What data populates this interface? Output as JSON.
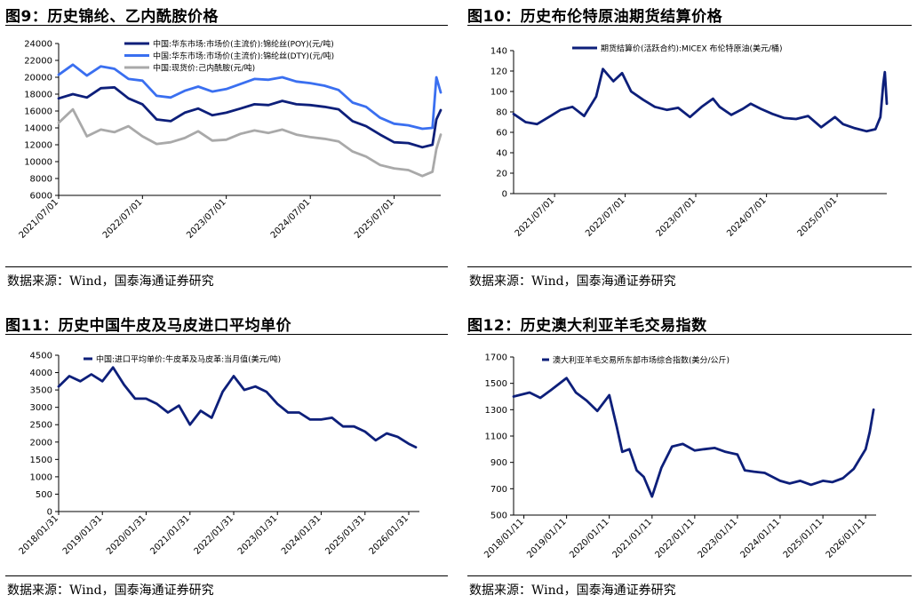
{
  "source_label": "数据来源：Wind，国泰海通证券研究",
  "panels": [
    {
      "title": "图9：历史锦纶、乙内酰胺价格"
    },
    {
      "title": "图10：历史布伦特原油期货结算价格"
    },
    {
      "title": "图11：历史中国牛皮及马皮进口平均单价"
    },
    {
      "title": "图12：历史澳大利亚羊毛交易指数"
    }
  ],
  "chart_data": [
    {
      "type": "line",
      "title": "历史锦纶、乙内酰胺价格",
      "x_ticks": [
        "2021/07/01",
        "2022/07/01",
        "2023/07/01",
        "2024/07/01",
        "2025/07/01"
      ],
      "y_ticks": [
        6000,
        8000,
        10000,
        12000,
        14000,
        16000,
        18000,
        20000,
        22000,
        24000
      ],
      "ylim": [
        6000,
        24000
      ],
      "grid": false,
      "legend_position": "top",
      "x_range": [
        "2021/07/01",
        "2026/01/20"
      ],
      "series": [
        {
          "name": "中国:华东市场:市场价(主流价):锦纶丝(POY)(元/吨)",
          "color": "#0d1f7a",
          "x": [
            "2021/07/01",
            "2021/09/01",
            "2021/11/01",
            "2022/01/01",
            "2022/03/01",
            "2022/05/01",
            "2022/07/01",
            "2022/09/01",
            "2022/11/01",
            "2023/01/01",
            "2023/03/01",
            "2023/05/01",
            "2023/07/01",
            "2023/09/01",
            "2023/11/01",
            "2024/01/01",
            "2024/03/01",
            "2024/05/01",
            "2024/07/01",
            "2024/09/01",
            "2024/11/01",
            "2025/01/01",
            "2025/03/01",
            "2025/05/01",
            "2025/07/01",
            "2025/09/01",
            "2025/11/01",
            "2025/12/15",
            "2026/01/01",
            "2026/01/20"
          ],
          "values": [
            17500,
            18000,
            17600,
            18700,
            18800,
            17500,
            16800,
            15000,
            14800,
            15800,
            16300,
            15500,
            15800,
            16300,
            16800,
            16700,
            17200,
            16800,
            16700,
            16500,
            16200,
            14800,
            14200,
            13200,
            12300,
            12200,
            11700,
            12000,
            15000,
            16100
          ]
        },
        {
          "name": "中国:华东市场:市场价(主流价):锦纶丝(DTY)(元/吨)",
          "color": "#3a6ff0",
          "x": [
            "2021/07/01",
            "2021/09/01",
            "2021/11/01",
            "2022/01/01",
            "2022/03/01",
            "2022/05/01",
            "2022/07/01",
            "2022/09/01",
            "2022/11/01",
            "2023/01/01",
            "2023/03/01",
            "2023/05/01",
            "2023/07/01",
            "2023/09/01",
            "2023/11/01",
            "2024/01/01",
            "2024/03/01",
            "2024/05/01",
            "2024/07/01",
            "2024/09/01",
            "2024/11/01",
            "2025/01/01",
            "2025/03/01",
            "2025/05/01",
            "2025/07/01",
            "2025/09/01",
            "2025/11/01",
            "2025/12/15",
            "2026/01/01",
            "2026/01/20"
          ],
          "values": [
            20300,
            21500,
            20200,
            21300,
            21000,
            19800,
            19600,
            17800,
            17600,
            18400,
            18900,
            18300,
            18600,
            19200,
            19800,
            19700,
            20000,
            19500,
            19300,
            19000,
            18500,
            17000,
            16500,
            15200,
            14500,
            14300,
            13900,
            14000,
            20000,
            18200
          ]
        },
        {
          "name": "中国:现货价:己内酰胺(元/吨)",
          "color": "#a9a9a9",
          "x": [
            "2021/07/01",
            "2021/09/01",
            "2021/11/01",
            "2022/01/01",
            "2022/03/01",
            "2022/05/01",
            "2022/07/01",
            "2022/09/01",
            "2022/11/01",
            "2023/01/01",
            "2023/03/01",
            "2023/05/01",
            "2023/07/01",
            "2023/09/01",
            "2023/11/01",
            "2024/01/01",
            "2024/03/01",
            "2024/05/01",
            "2024/07/01",
            "2024/09/01",
            "2024/11/01",
            "2025/01/01",
            "2025/03/01",
            "2025/05/01",
            "2025/07/01",
            "2025/09/01",
            "2025/11/01",
            "2025/12/15",
            "2026/01/01",
            "2026/01/20"
          ],
          "values": [
            14600,
            16200,
            13000,
            13800,
            13500,
            14200,
            13000,
            12100,
            12300,
            12800,
            13600,
            12500,
            12600,
            13300,
            13700,
            13400,
            13800,
            13200,
            12900,
            12700,
            12400,
            11200,
            10600,
            9600,
            9200,
            9000,
            8300,
            8800,
            11500,
            13200
          ]
        }
      ]
    },
    {
      "type": "line",
      "title": "历史布伦特原油期货结算价格",
      "x_ticks": [
        "2021/07/01",
        "2022/07/01",
        "2023/07/01",
        "2024/07/01",
        "2025/07/01"
      ],
      "y_ticks": [
        0,
        20,
        40,
        60,
        80,
        100,
        120,
        140
      ],
      "ylim": [
        0,
        140
      ],
      "grid": false,
      "legend_position": "top",
      "x_range": [
        "2020/12/01",
        "2026/03/15"
      ],
      "series": [
        {
          "name": "期货结算价(活跃合约):MICEX 布伦特原油(美元/桶)",
          "color": "#0d1f7a",
          "x": [
            "2020/12/01",
            "2021/02/01",
            "2021/04/01",
            "2021/06/01",
            "2021/08/01",
            "2021/10/01",
            "2021/12/01",
            "2022/02/01",
            "2022/03/08",
            "2022/05/01",
            "2022/06/15",
            "2022/08/01",
            "2022/10/01",
            "2022/12/01",
            "2023/02/01",
            "2023/04/01",
            "2023/06/01",
            "2023/08/01",
            "2023/09/28",
            "2023/11/01",
            "2024/01/01",
            "2024/03/01",
            "2024/04/10",
            "2024/06/01",
            "2024/08/01",
            "2024/10/01",
            "2024/12/01",
            "2025/02/01",
            "2025/04/10",
            "2025/06/20",
            "2025/08/01",
            "2025/10/01",
            "2025/12/01",
            "2026/01/15",
            "2026/02/10",
            "2026/02/25",
            "2026/03/05",
            "2026/03/15"
          ],
          "values": [
            78,
            70,
            68,
            75,
            82,
            85,
            76,
            95,
            122,
            110,
            118,
            100,
            92,
            85,
            82,
            84,
            75,
            85,
            93,
            85,
            77,
            83,
            88,
            83,
            78,
            74,
            73,
            76,
            65,
            75,
            68,
            64,
            61,
            63,
            75,
            108,
            119,
            88
          ]
        }
      ]
    },
    {
      "type": "line",
      "title": "历史中国牛皮及马皮进口平均单价",
      "x_ticks": [
        "2018/01/31",
        "2019/01/31",
        "2020/01/31",
        "2021/01/31",
        "2022/01/31",
        "2023/01/31",
        "2024/01/31",
        "2025/01/31",
        "2026/01/31"
      ],
      "y_ticks": [
        0,
        500,
        1000,
        1500,
        2000,
        2500,
        3000,
        3500,
        4000,
        4500
      ],
      "ylim": [
        0,
        4500
      ],
      "grid": false,
      "legend_position": "top",
      "x_range": [
        "2018/01/31",
        "2026/04/30"
      ],
      "series": [
        {
          "name": "中国:进口平均单价:牛皮革及马皮革:当月值(美元/吨)",
          "color": "#0d1f7a",
          "x": [
            "2018/01/31",
            "2018/04/30",
            "2018/07/31",
            "2018/10/31",
            "2019/01/31",
            "2019/04/30",
            "2019/07/31",
            "2019/10/31",
            "2020/01/31",
            "2020/04/30",
            "2020/07/31",
            "2020/10/31",
            "2021/01/31",
            "2021/04/30",
            "2021/07/31",
            "2021/10/31",
            "2022/01/31",
            "2022/04/30",
            "2022/07/31",
            "2022/10/31",
            "2023/01/31",
            "2023/04/30",
            "2023/07/31",
            "2023/10/31",
            "2024/01/31",
            "2024/04/30",
            "2024/07/31",
            "2024/10/31",
            "2025/01/31",
            "2025/04/30",
            "2025/07/31",
            "2025/10/31",
            "2026/01/31",
            "2026/03/31"
          ],
          "values": [
            3600,
            3900,
            3750,
            3950,
            3750,
            4150,
            3650,
            3250,
            3250,
            3100,
            2850,
            3050,
            2500,
            2900,
            2700,
            3450,
            3900,
            3500,
            3600,
            3450,
            3100,
            2850,
            2850,
            2650,
            2650,
            2700,
            2450,
            2450,
            2300,
            2050,
            2250,
            2150,
            1950,
            1850
          ]
        }
      ]
    },
    {
      "type": "line",
      "title": "历史澳大利亚羊毛交易指数",
      "x_ticks": [
        "2018/01/11",
        "2019/01/11",
        "2020/01/11",
        "2021/01/11",
        "2022/01/11",
        "2023/01/11",
        "2024/01/11",
        "2025/01/11",
        "2026/01/11"
      ],
      "y_ticks": [
        500,
        700,
        900,
        1100,
        1300,
        1500,
        1700
      ],
      "ylim": [
        500,
        1700
      ],
      "grid": false,
      "legend_position": "top",
      "x_range": [
        "2017/10/15",
        "2026/04/11"
      ],
      "series": [
        {
          "name": "澳大利亚羊毛交易所东部市场综合指数(美分/公斤)",
          "color": "#0d1f7a",
          "x": [
            "2017/10/15",
            "2018/03/01",
            "2018/06/01",
            "2018/09/01",
            "2019/01/11",
            "2019/04/01",
            "2019/07/01",
            "2019/10/01",
            "2020/01/11",
            "2020/03/15",
            "2020/05/01",
            "2020/07/01",
            "2020/09/01",
            "2020/11/01",
            "2021/01/11",
            "2021/04/01",
            "2021/07/01",
            "2021/10/01",
            "2022/01/11",
            "2022/04/01",
            "2022/07/01",
            "2022/10/01",
            "2023/01/11",
            "2023/03/15",
            "2023/06/01",
            "2023/09/01",
            "2024/01/11",
            "2024/04/01",
            "2024/07/01",
            "2024/10/01",
            "2025/01/11",
            "2025/04/01",
            "2025/07/01",
            "2025/10/01",
            "2026/01/11",
            "2026/02/15",
            "2026/03/20"
          ],
          "values": [
            1400,
            1430,
            1390,
            1450,
            1540,
            1430,
            1370,
            1290,
            1410,
            1170,
            980,
            1000,
            840,
            790,
            640,
            860,
            1020,
            1040,
            990,
            1000,
            1010,
            980,
            960,
            840,
            830,
            820,
            760,
            740,
            760,
            730,
            760,
            750,
            780,
            850,
            1000,
            1130,
            1300
          ]
        }
      ]
    }
  ]
}
